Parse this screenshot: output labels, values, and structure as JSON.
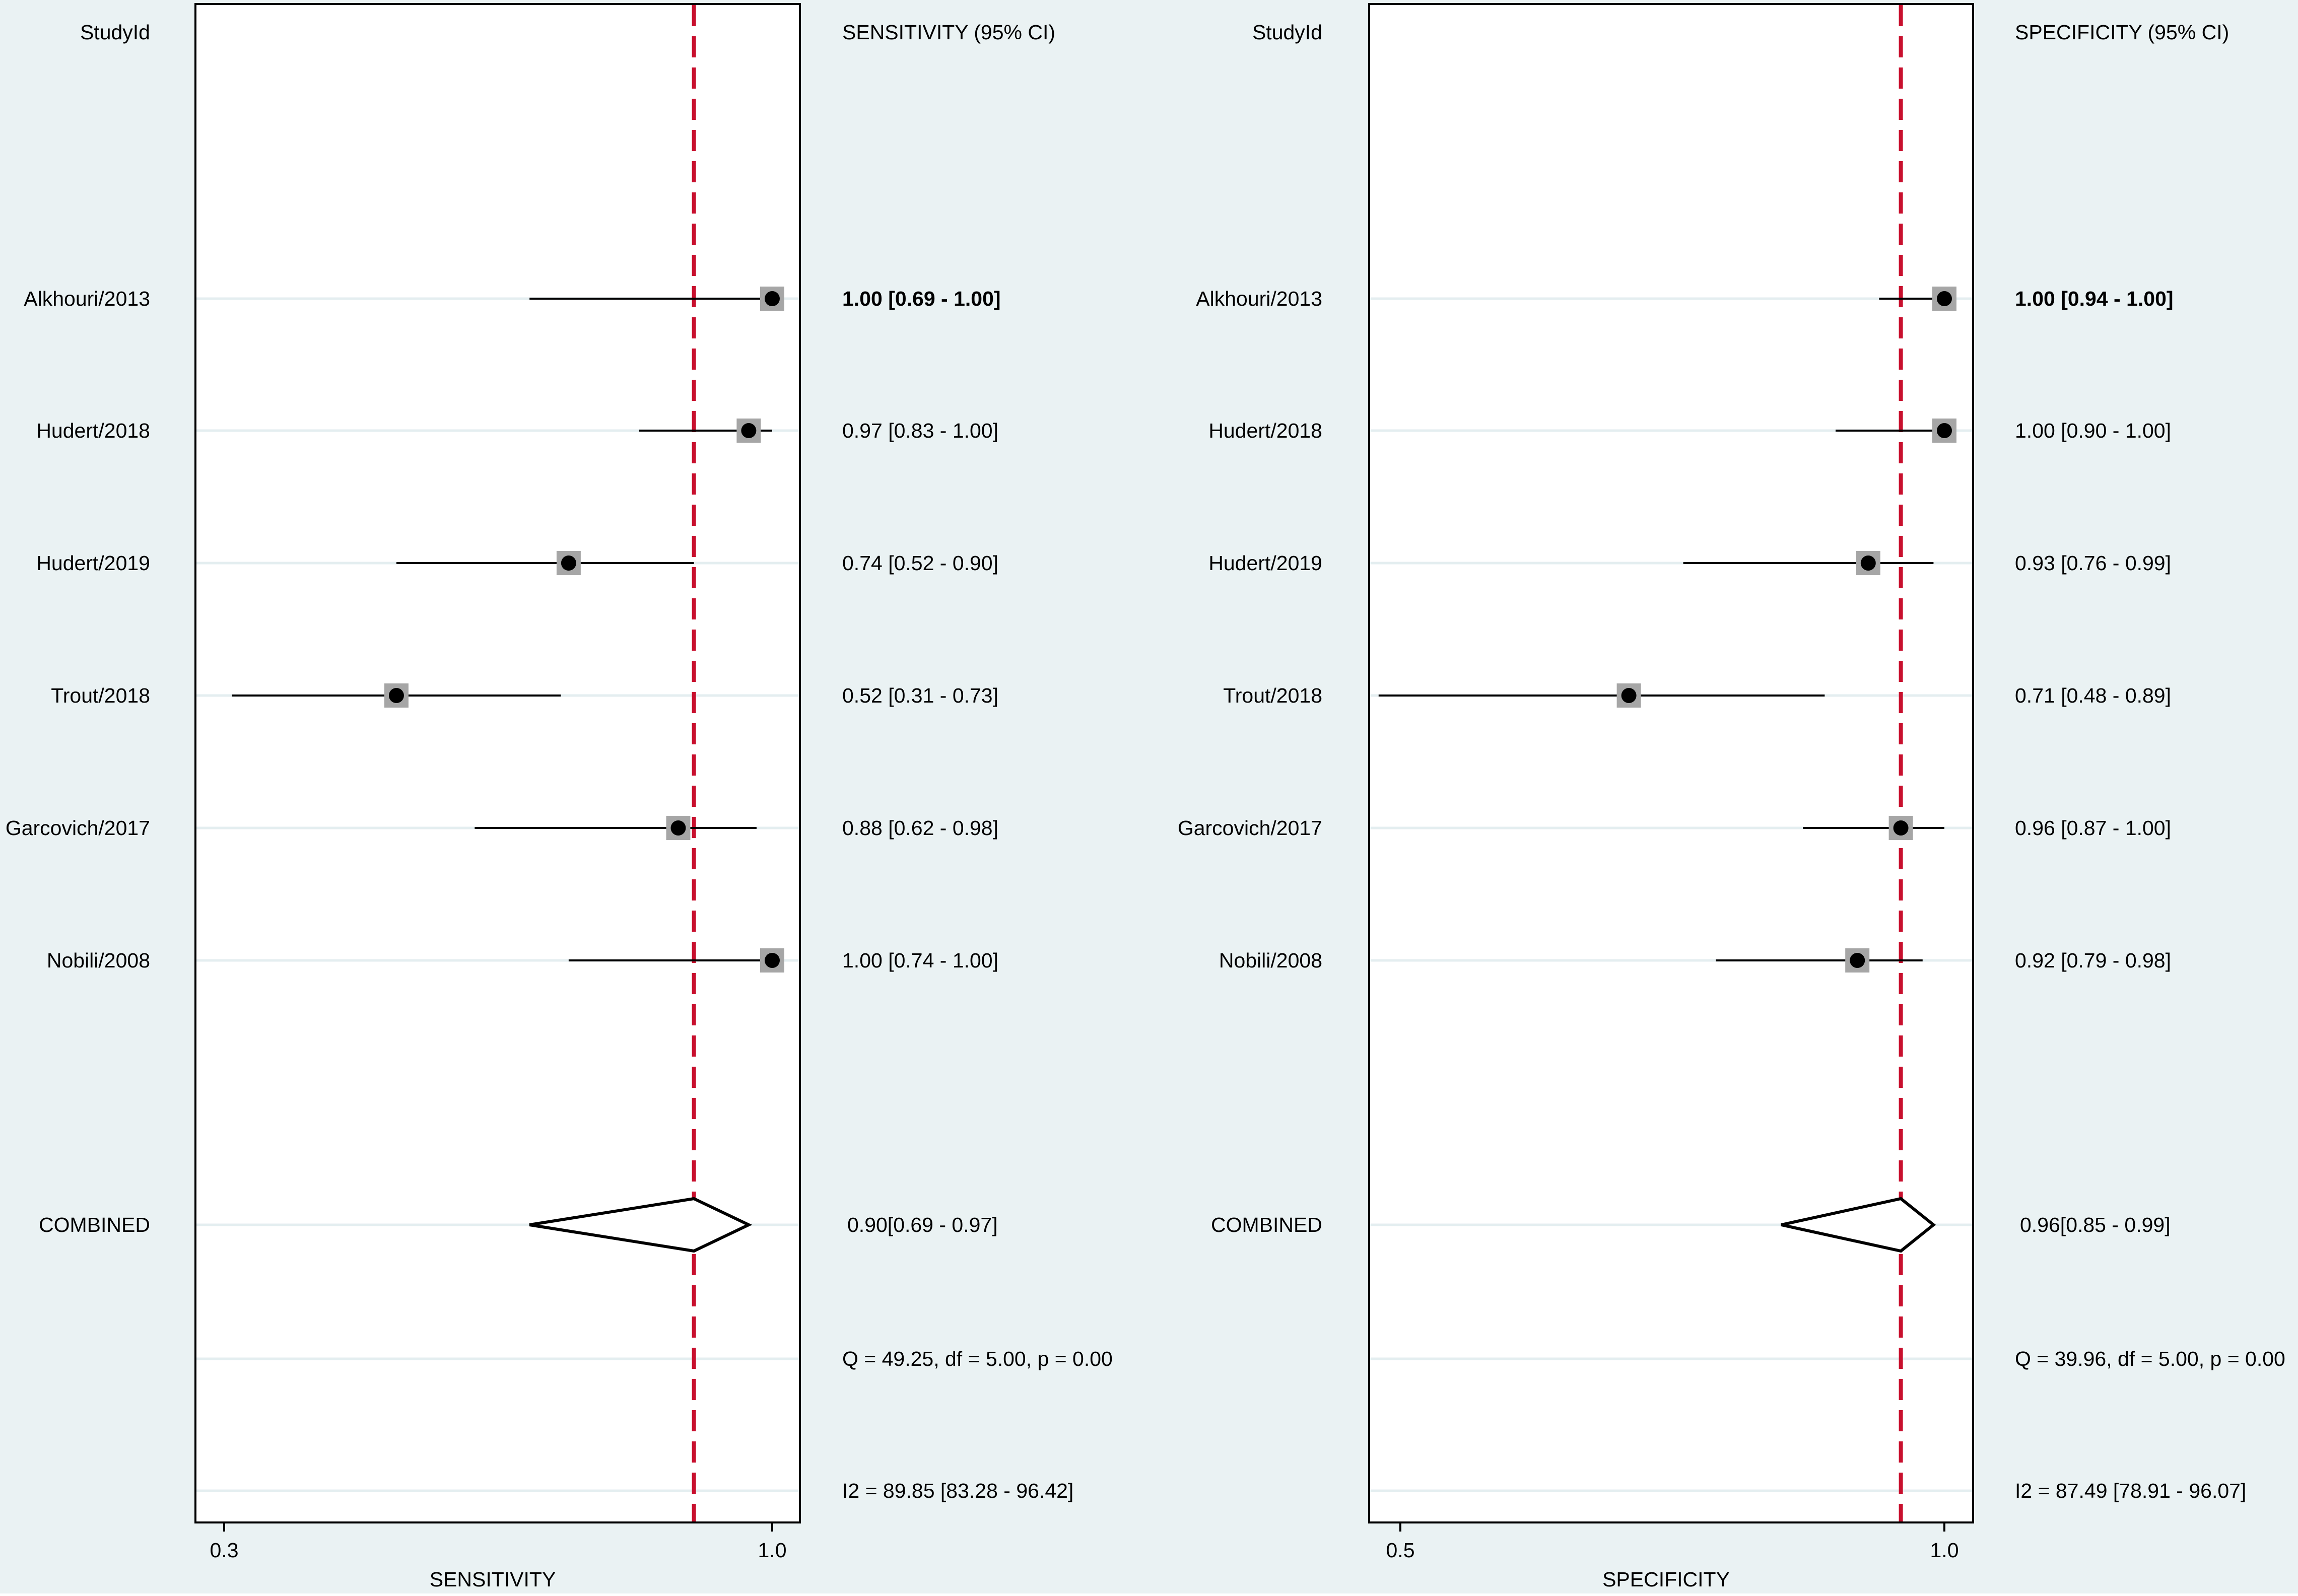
{
  "chart_data": [
    {
      "type": "forest",
      "studyid_header": "StudyId",
      "estimate_header": "SENSITIVITY (95% CI)",
      "xlabel": "SENSITIVITY",
      "xlim": [
        0.3,
        1.0
      ],
      "xticks": [
        "0.3",
        "1.0"
      ],
      "reference_line": 0.9,
      "studies": [
        {
          "name": "Alkhouri/2013",
          "estimate": 1.0,
          "ci": [
            0.69,
            1.0
          ],
          "label": "1.00 [0.69 - 1.00]",
          "emphasis": true
        },
        {
          "name": "Hudert/2018",
          "estimate": 0.97,
          "ci": [
            0.83,
            1.0
          ],
          "label": "0.97 [0.83 - 1.00]"
        },
        {
          "name": "Hudert/2019",
          "estimate": 0.74,
          "ci": [
            0.52,
            0.9
          ],
          "label": "0.74 [0.52 - 0.90]"
        },
        {
          "name": "Trout/2018",
          "estimate": 0.52,
          "ci": [
            0.31,
            0.73
          ],
          "label": "0.52 [0.31 - 0.73]"
        },
        {
          "name": "Garcovich/2017",
          "estimate": 0.88,
          "ci": [
            0.62,
            0.98
          ],
          "label": "0.88 [0.62 - 0.98]"
        },
        {
          "name": "Nobili/2008",
          "estimate": 1.0,
          "ci": [
            0.74,
            1.0
          ],
          "label": "1.00 [0.74 - 1.00]"
        }
      ],
      "combined": {
        "name": "COMBINED",
        "estimate": 0.9,
        "ci": [
          0.69,
          0.97
        ],
        "label": "0.90[0.69 - 0.97]"
      },
      "heterogeneity": {
        "q_text": "Q = 49.25, df = 5.00, p =  0.00",
        "i2_text": "I2 = 89.85 [83.28 - 96.42]"
      }
    },
    {
      "type": "forest",
      "studyid_header": "StudyId",
      "estimate_header": "SPECIFICITY (95% CI)",
      "xlabel": "SPECIFICITY",
      "xlim": [
        0.5,
        1.0
      ],
      "xticks": [
        "0.5",
        "1.0"
      ],
      "reference_line": 0.96,
      "studies": [
        {
          "name": "Alkhouri/2013",
          "estimate": 1.0,
          "ci": [
            0.94,
            1.0
          ],
          "label": "1.00 [0.94 - 1.00]",
          "emphasis": true
        },
        {
          "name": "Hudert/2018",
          "estimate": 1.0,
          "ci": [
            0.9,
            1.0
          ],
          "label": "1.00 [0.90 - 1.00]"
        },
        {
          "name": "Hudert/2019",
          "estimate": 0.93,
          "ci": [
            0.76,
            0.99
          ],
          "label": "0.93 [0.76 - 0.99]"
        },
        {
          "name": "Trout/2018",
          "estimate": 0.71,
          "ci": [
            0.48,
            0.89
          ],
          "label": "0.71 [0.48 - 0.89]"
        },
        {
          "name": "Garcovich/2017",
          "estimate": 0.96,
          "ci": [
            0.87,
            1.0
          ],
          "label": "0.96 [0.87 - 1.00]"
        },
        {
          "name": "Nobili/2008",
          "estimate": 0.92,
          "ci": [
            0.79,
            0.98
          ],
          "label": "0.92 [0.79 - 0.98]"
        }
      ],
      "combined": {
        "name": "COMBINED",
        "estimate": 0.96,
        "ci": [
          0.85,
          0.99
        ],
        "label": "0.96[0.85 - 0.99]"
      },
      "heterogeneity": {
        "q_text": "Q = 39.96, df = 5.00, p =  0.00",
        "i2_text": "I2 = 87.49 [78.91 - 96.07]"
      }
    }
  ],
  "colors": {
    "background": "#eaf2f3",
    "plot_background": "#ffffff",
    "reference_line": "#c8102e",
    "row_line": "#e4eef0",
    "marker_box": "#a6a6a6"
  }
}
